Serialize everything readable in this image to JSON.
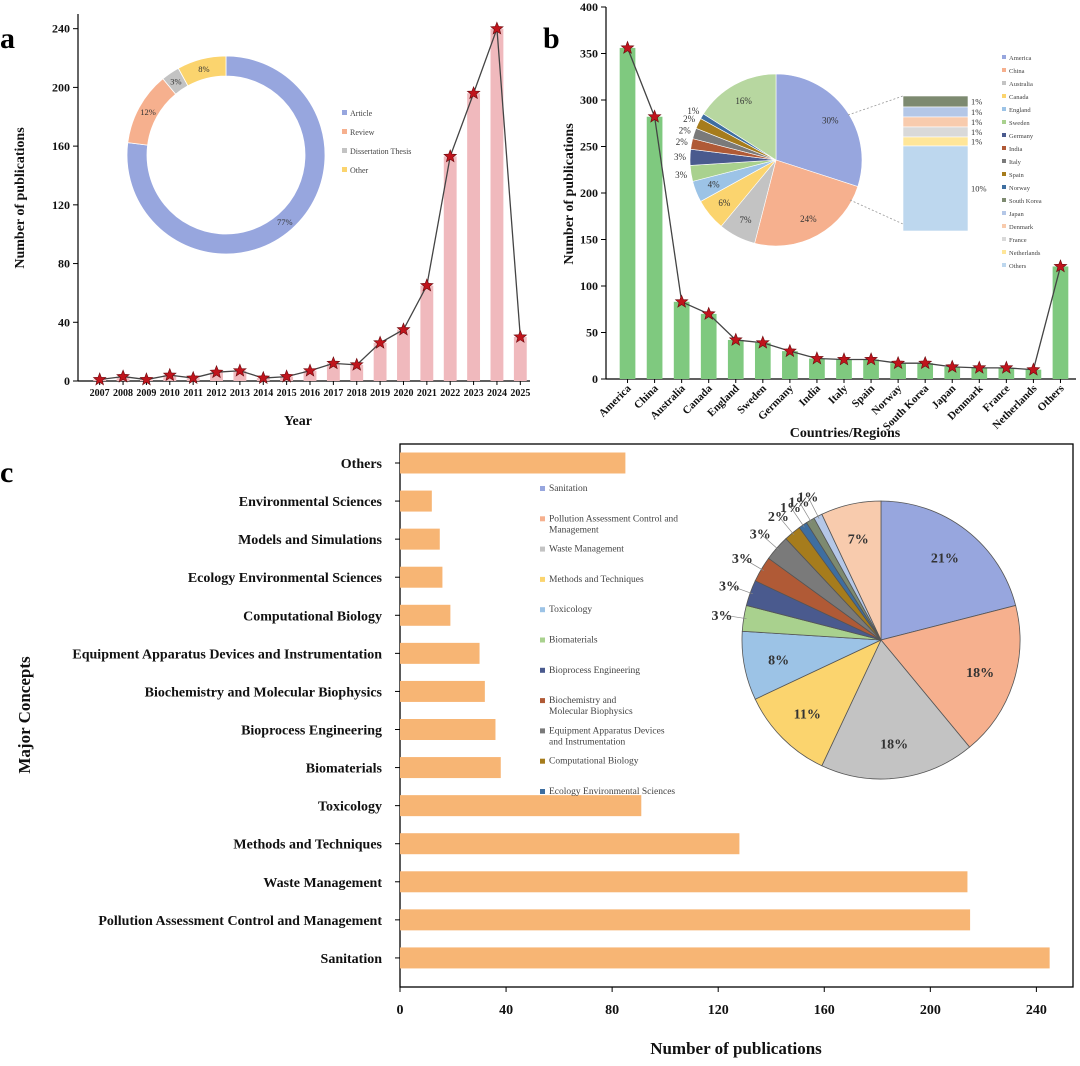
{
  "colors": {
    "pink_bar": "#f0b9bd",
    "green_bar": "#7fc97f",
    "orange_bar": "#f7b574",
    "line": "#444444",
    "star_fill": "#c0141c",
    "star_stroke": "#6a0a0e"
  },
  "chart_data": [
    {
      "panel": "a",
      "type": "bar",
      "xlabel": "Year",
      "ylabel": "Number of publications",
      "ylim": [
        0,
        250
      ],
      "yticks": [
        0,
        40,
        80,
        120,
        160,
        200,
        240
      ],
      "categories": [
        "2007",
        "2008",
        "2009",
        "2010",
        "2011",
        "2012",
        "2013",
        "2014",
        "2015",
        "2016",
        "2017",
        "2018",
        "2019",
        "2020",
        "2021",
        "2022",
        "2023",
        "2024",
        "2025"
      ],
      "values": [
        1,
        3,
        1,
        4,
        2,
        6,
        7,
        2,
        3,
        7,
        12,
        11,
        26,
        35,
        65,
        153,
        196,
        240,
        30
      ],
      "overlay": "line-with-star-markers",
      "donut": {
        "type": "pie",
        "style": "donut",
        "labels": [
          "Article",
          "Review",
          "Dissertation Thesis",
          "Other"
        ],
        "values": [
          77,
          12,
          3,
          8
        ],
        "pct_labels": [
          "77%",
          "12%",
          "3%",
          "8%"
        ],
        "colors": [
          "#97a6de",
          "#f6b08e",
          "#c3c3c3",
          "#fbd46e"
        ],
        "legend_position": "right"
      }
    },
    {
      "panel": "b",
      "type": "bar",
      "xlabel": "Countries/Regions",
      "ylabel": "Number of publications",
      "ylim": [
        0,
        400
      ],
      "yticks": [
        0,
        50,
        100,
        150,
        200,
        250,
        300,
        350,
        400
      ],
      "categories": [
        "America",
        "China",
        "Australia",
        "Canada",
        "England",
        "Sweden",
        "Germany",
        "India",
        "Italy",
        "Spain",
        "Norway",
        "South Korea",
        "Japan",
        "Denmark",
        "France",
        "Netherlands",
        "Others"
      ],
      "values": [
        356,
        282,
        83,
        70,
        42,
        39,
        30,
        22,
        21,
        21,
        17,
        17,
        13,
        12,
        12,
        10,
        121
      ],
      "overlay": "line-with-star-markers",
      "pie_of_pie": {
        "type": "pie",
        "labels": [
          "America",
          "China",
          "Australia",
          "Canada",
          "England",
          "Sweden",
          "Germany",
          "India",
          "Italy",
          "Spain",
          "Norway",
          "South Korea",
          "Japan",
          "Denmark",
          "France",
          "Netherlands",
          "Others"
        ],
        "legend_labels": [
          "America",
          "China",
          "Australia",
          "Canada",
          "England",
          "Sweden",
          "Germany",
          "India",
          "Italy",
          "Spain",
          "Norway",
          "South Korea",
          "Japan",
          "Denmark",
          "France",
          "Netherlands",
          "Others"
        ],
        "main_slices": [
          {
            "label": "America",
            "value": 30,
            "pct": "30%",
            "color": "#97a6de"
          },
          {
            "label": "China",
            "value": 24,
            "pct": "24%",
            "color": "#f6b08e"
          },
          {
            "label": "Australia",
            "value": 7,
            "pct": "7%",
            "color": "#c3c3c3"
          },
          {
            "label": "Canada",
            "value": 6,
            "pct": "6%",
            "color": "#fbd46e"
          },
          {
            "label": "England",
            "value": 4,
            "pct": "4%",
            "color": "#9cc3e6"
          },
          {
            "label": "Sweden",
            "value": 3,
            "pct": "3%",
            "color": "#a9d18e"
          },
          {
            "label": "Germany",
            "value": 3,
            "pct": "3%",
            "color": "#4a5a8e"
          },
          {
            "label": "India",
            "value": 2,
            "pct": "2%",
            "color": "#b05a36"
          },
          {
            "label": "Italy",
            "value": 2,
            "pct": "2%",
            "color": "#7a7a7a"
          },
          {
            "label": "Spain",
            "value": 2,
            "pct": "2%",
            "color": "#a67c1c"
          },
          {
            "label": "Norway",
            "value": 1,
            "pct": "1%",
            "color": "#3e6ea0"
          },
          {
            "label": "Other (pie of pie)",
            "value": 16,
            "pct": "16%",
            "color": "#b7d7a0"
          }
        ],
        "secondary_bar": {
          "segments": [
            {
              "label": "South Korea",
              "pct": "1%",
              "color": "#7d8a70"
            },
            {
              "label": "Japan",
              "pct": "1%",
              "color": "#b4c7e7"
            },
            {
              "label": "Denmark",
              "pct": "1%",
              "color": "#f8cbad"
            },
            {
              "label": "France",
              "pct": "1%",
              "color": "#d9d9d9"
            },
            {
              "label": "Netherlands",
              "pct": "1%",
              "color": "#ffe699"
            },
            {
              "label": "Others",
              "pct": "10%",
              "color": "#bdd7ee"
            }
          ]
        }
      }
    },
    {
      "panel": "c",
      "type": "bar",
      "orientation": "horizontal",
      "xlabel": "Number of publications",
      "ylabel": "Major Concepts",
      "xlim": [
        0,
        245
      ],
      "xticks": [
        0,
        40,
        80,
        120,
        160,
        200,
        240
      ],
      "categories": [
        "Others",
        "Environmental Sciences",
        "Models and Simulations",
        "Ecology Environmental Sciences",
        "Computational Biology",
        "Equipment Apparatus Devices and Instrumentation",
        "Biochemistry and Molecular Biophysics",
        "Bioprocess Engineering",
        "Biomaterials",
        "Toxicology",
        "Methods and Techniques",
        "Waste Management",
        "Pollution Assessment Control and Management",
        "Sanitation"
      ],
      "values": [
        85,
        12,
        15,
        16,
        19,
        30,
        32,
        36,
        38,
        91,
        128,
        214,
        215,
        245
      ],
      "pie": {
        "type": "pie",
        "legend": [
          {
            "label": "Sanitation",
            "color": "#97a6de"
          },
          {
            "label": "Pollution Assessment Control and Management",
            "color": "#f6b08e"
          },
          {
            "label": "Waste Management",
            "color": "#c3c3c3"
          },
          {
            "label": "Methods and Techniques",
            "color": "#fbd46e"
          },
          {
            "label": "Toxicology",
            "color": "#9cc3e6"
          },
          {
            "label": "Biomaterials",
            "color": "#a9d18e"
          },
          {
            "label": "Bioprocess Engineering",
            "color": "#4a5a8e"
          },
          {
            "label": "Biochemistry and Molecular Biophysics",
            "color": "#b05a36"
          },
          {
            "label": "Equipment Apparatus Devices and Instrumentation",
            "color": "#7a7a7a"
          },
          {
            "label": "Computational Biology",
            "color": "#a67c1c"
          },
          {
            "label": "Ecology Environmental Sciences",
            "color": "#3e6ea0"
          }
        ],
        "slices": [
          {
            "label": "Sanitation",
            "value": 21,
            "pct": "21%",
            "color": "#97a6de"
          },
          {
            "label": "Pollution Assessment Control and Management",
            "value": 18,
            "pct": "18%",
            "color": "#f6b08e"
          },
          {
            "label": "Waste Management",
            "value": 18,
            "pct": "18%",
            "color": "#c3c3c3"
          },
          {
            "label": "Methods and Techniques",
            "value": 11,
            "pct": "11%",
            "color": "#fbd46e"
          },
          {
            "label": "Toxicology",
            "value": 8,
            "pct": "8%",
            "color": "#9cc3e6"
          },
          {
            "label": "Biomaterials",
            "value": 3,
            "pct": "3%",
            "color": "#a9d18e"
          },
          {
            "label": "Bioprocess Engineering",
            "value": 3,
            "pct": "3%",
            "color": "#4a5a8e"
          },
          {
            "label": "Biochemistry and Molecular Biophysics",
            "value": 3,
            "pct": "3%",
            "color": "#b05a36"
          },
          {
            "label": "Equipment Apparatus Devices and Instrumentation",
            "value": 3,
            "pct": "3%",
            "color": "#7a7a7a"
          },
          {
            "label": "Computational Biology",
            "value": 2,
            "pct": "2%",
            "color": "#a67c1c"
          },
          {
            "label": "Ecology Environmental Sciences",
            "value": 1,
            "pct": "1%",
            "color": "#3e6ea0"
          },
          {
            "label": "Models and Simulations",
            "value": 1,
            "pct": "1%",
            "color": "#7d8a70"
          },
          {
            "label": "Environmental Sciences",
            "value": 1,
            "pct": "1%",
            "color": "#b4c7e7"
          },
          {
            "label": "Others",
            "value": 7,
            "pct": "7%",
            "color": "#f8cbad"
          }
        ]
      }
    }
  ]
}
